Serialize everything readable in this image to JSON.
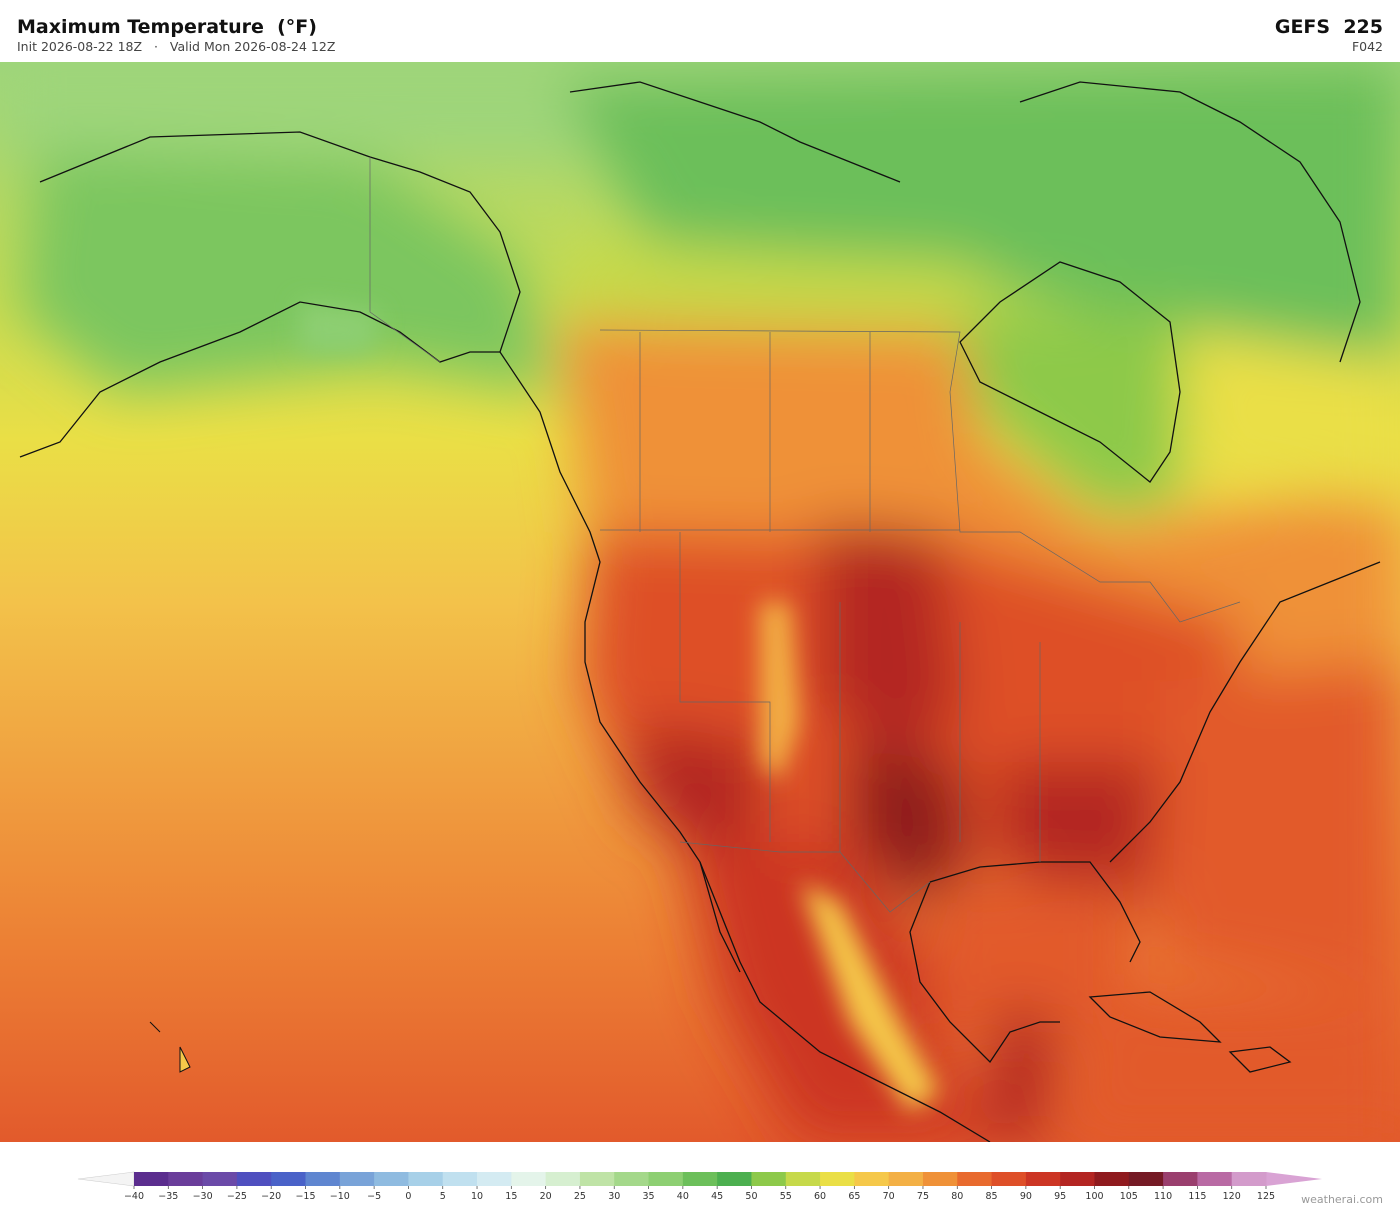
{
  "header": {
    "title": "Maximum Temperature  (°F)",
    "init": "Init 2026-08-22 18Z",
    "valid": "Valid Mon 2026-08-24 12Z",
    "model": "GEFS  225",
    "forecast_hour": "F042"
  },
  "colorbar": {
    "ticks": [
      {
        "value": -40,
        "label": "−40"
      },
      {
        "value": -35,
        "label": "−35"
      },
      {
        "value": -30,
        "label": "−30"
      },
      {
        "value": -25,
        "label": "−25"
      },
      {
        "value": -20,
        "label": "−20"
      },
      {
        "value": -15,
        "label": "−15"
      },
      {
        "value": -10,
        "label": "−10"
      },
      {
        "value": -5,
        "label": "−5"
      },
      0,
      5,
      10,
      15,
      20,
      25,
      30,
      35,
      40,
      45,
      50,
      55,
      60,
      65,
      70,
      75,
      80,
      85,
      90,
      95,
      100,
      105,
      110,
      115,
      120,
      125
    ],
    "colors": [
      "#5b2d8e",
      "#6a3d9a",
      "#6b4aa8",
      "#4f4fbf",
      "#4a62c8",
      "#5f86d0",
      "#79a3d8",
      "#8fbbe0",
      "#a7d0e8",
      "#c0e0ef",
      "#d4ebf2",
      "#e4f4ea",
      "#d6efd0",
      "#bfe3a6",
      "#a4d88a",
      "#8dcf72",
      "#6cbf5a",
      "#4caf4f",
      "#8dc94a",
      "#c6d94a",
      "#eadf46",
      "#f5c84a",
      "#f3b045",
      "#ef9138",
      "#e86a2e",
      "#de4f28",
      "#cc3524",
      "#b32522",
      "#8f1a1e",
      "#751a25",
      "#9a3f6e",
      "#b96aa4",
      "#d39bcb"
    ],
    "under_color": "#f4f4f4",
    "over_color": "#d9a3d4"
  },
  "watermark": "weatherai.com"
}
